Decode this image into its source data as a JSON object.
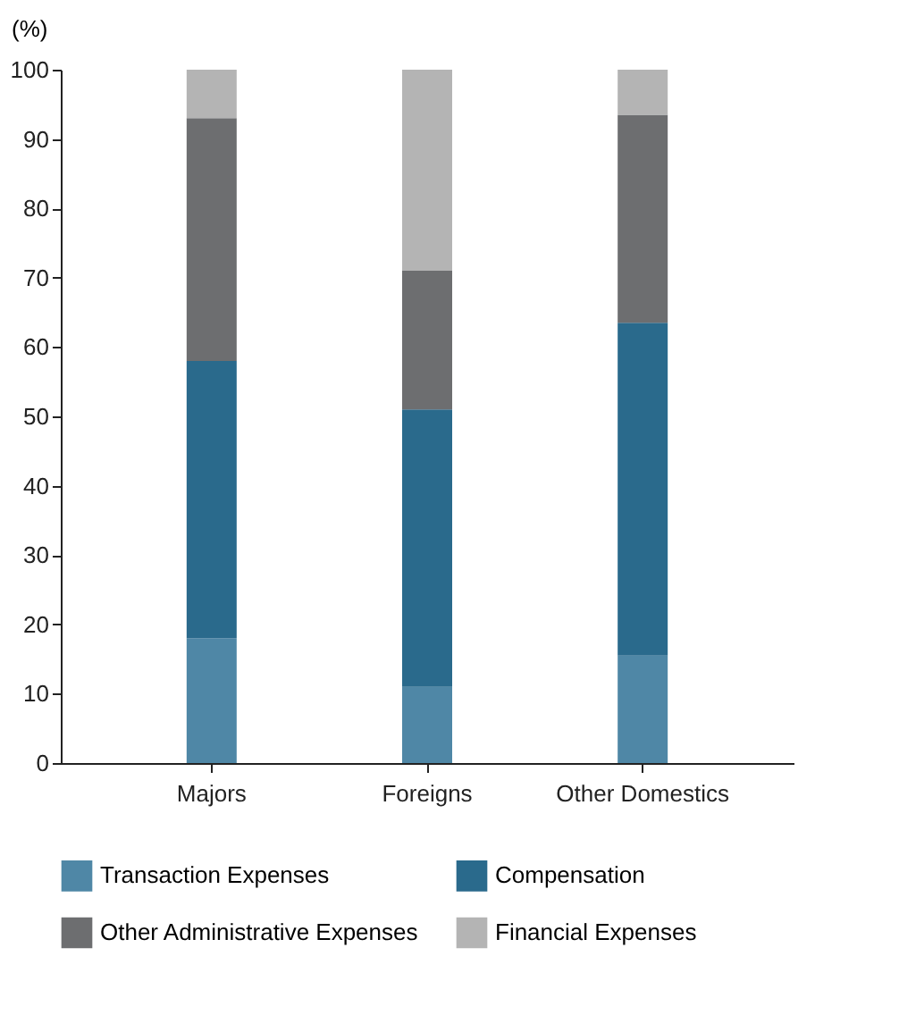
{
  "chart_data": {
    "type": "bar",
    "stacked": true,
    "ylabel": "(%)",
    "categories": [
      "Majors",
      "Foreigns",
      "Other Domestics"
    ],
    "series": [
      {
        "name": "Transaction Expenses",
        "color": "#4f87a6",
        "values": [
          18,
          11,
          15.5
        ]
      },
      {
        "name": "Compensation",
        "color": "#2a6a8c",
        "values": [
          40,
          40,
          48
        ]
      },
      {
        "name": "Other Administrative Expenses",
        "color": "#6d6e70",
        "values": [
          35,
          20,
          30
        ]
      },
      {
        "name": "Financial Expenses",
        "color": "#b4b4b4",
        "values": [
          7,
          29,
          6.5
        ]
      }
    ],
    "ylim": [
      0,
      100
    ],
    "yticks": [
      0,
      10,
      20,
      30,
      40,
      50,
      60,
      70,
      80,
      90,
      100
    ],
    "grid": false,
    "legend": "bottom"
  }
}
